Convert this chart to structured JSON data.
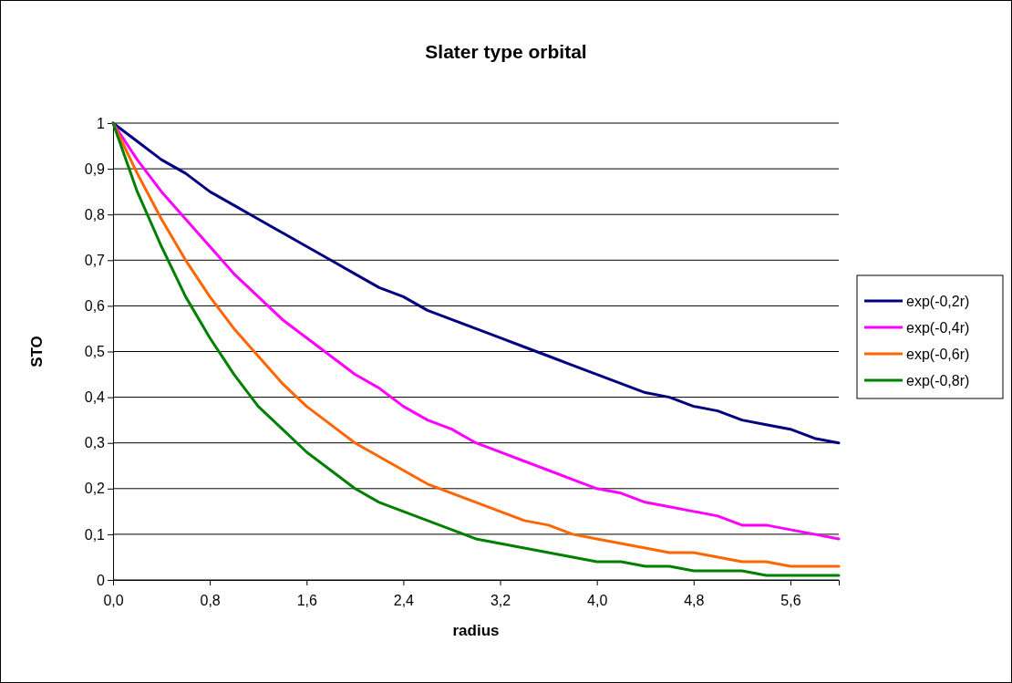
{
  "chart_data": {
    "type": "line",
    "title": "Slater type orbital",
    "xlabel": "radius",
    "ylabel": "STO",
    "x": [
      0,
      0.2,
      0.4,
      0.6,
      0.8,
      1.0,
      1.2,
      1.4,
      1.6,
      1.8,
      2.0,
      2.2,
      2.4,
      2.6,
      2.8,
      3.0,
      3.2,
      3.4,
      3.6,
      3.8,
      4.0,
      4.2,
      4.4,
      4.6,
      4.8,
      5.0,
      5.2,
      5.4,
      5.6,
      5.8,
      6.0
    ],
    "series": [
      {
        "name": "exp(-0,2r)",
        "color": "#000080",
        "values": [
          1,
          0.96,
          0.92,
          0.89,
          0.85,
          0.82,
          0.79,
          0.76,
          0.73,
          0.7,
          0.67,
          0.64,
          0.62,
          0.59,
          0.57,
          0.55,
          0.53,
          0.51,
          0.49,
          0.47,
          0.45,
          0.43,
          0.41,
          0.4,
          0.38,
          0.37,
          0.35,
          0.34,
          0.33,
          0.31,
          0.3
        ]
      },
      {
        "name": "exp(-0,4r)",
        "color": "#ff00ff",
        "values": [
          1,
          0.92,
          0.85,
          0.79,
          0.73,
          0.67,
          0.62,
          0.57,
          0.53,
          0.49,
          0.45,
          0.42,
          0.38,
          0.35,
          0.33,
          0.3,
          0.28,
          0.26,
          0.24,
          0.22,
          0.2,
          0.19,
          0.17,
          0.16,
          0.15,
          0.14,
          0.12,
          0.12,
          0.11,
          0.1,
          0.09
        ]
      },
      {
        "name": "exp(-0,6r)",
        "color": "#ff6600",
        "values": [
          1,
          0.89,
          0.79,
          0.7,
          0.62,
          0.55,
          0.49,
          0.43,
          0.38,
          0.34,
          0.3,
          0.27,
          0.24,
          0.21,
          0.19,
          0.17,
          0.15,
          0.13,
          0.12,
          0.1,
          0.09,
          0.08,
          0.07,
          0.06,
          0.06,
          0.05,
          0.04,
          0.04,
          0.03,
          0.03,
          0.03
        ]
      },
      {
        "name": "exp(-0,8r)",
        "color": "#008000",
        "values": [
          1,
          0.85,
          0.73,
          0.62,
          0.53,
          0.45,
          0.38,
          0.33,
          0.28,
          0.24,
          0.2,
          0.17,
          0.15,
          0.13,
          0.11,
          0.09,
          0.08,
          0.07,
          0.06,
          0.05,
          0.04,
          0.04,
          0.03,
          0.03,
          0.02,
          0.02,
          0.02,
          0.01,
          0.01,
          0.01,
          0.01
        ]
      }
    ],
    "xlim": [
      0,
      6
    ],
    "xticks": [
      {
        "value": 0,
        "label": "0,0"
      },
      {
        "value": 0.8,
        "label": "0,8"
      },
      {
        "value": 1.6,
        "label": "1,6"
      },
      {
        "value": 2.4,
        "label": "2,4"
      },
      {
        "value": 3.2,
        "label": "3,2"
      },
      {
        "value": 4.0,
        "label": "4,0"
      },
      {
        "value": 4.8,
        "label": "4,8"
      },
      {
        "value": 5.6,
        "label": "5,6"
      }
    ],
    "ylim": [
      0,
      1
    ],
    "yticks": [
      0,
      {
        "value": 0.1,
        "label": "0,1"
      },
      {
        "value": 0.2,
        "label": "0,2"
      },
      {
        "value": 0.3,
        "label": "0,3"
      },
      {
        "value": 0.4,
        "label": "0,4"
      },
      {
        "value": 0.5,
        "label": "0,5"
      },
      {
        "value": 0.6,
        "label": "0,6"
      },
      {
        "value": 0.7,
        "label": "0,7"
      },
      {
        "value": 0.8,
        "label": "0,8"
      },
      {
        "value": 0.9,
        "label": "0,9"
      },
      1
    ],
    "grid": "y",
    "legend": "right",
    "marker": "none",
    "line_style": "solid"
  }
}
